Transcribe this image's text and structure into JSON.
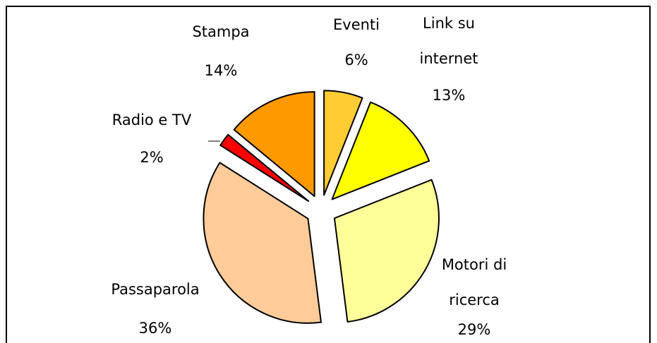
{
  "chart_data": {
    "type": "pie",
    "categories": [
      "Eventi",
      "Link su internet",
      "Motori di ricerca",
      "Passaparola",
      "Radio e TV",
      "Stampa"
    ],
    "values": [
      6,
      13,
      29,
      36,
      2,
      14
    ],
    "value_labels": [
      "6%",
      "13%",
      "29%",
      "36%",
      "2%",
      "14%"
    ],
    "colors": [
      "#FFCC33",
      "#FFFF00",
      "#FFFF99",
      "#FFCC99",
      "#FF0000",
      "#FF9900"
    ]
  }
}
